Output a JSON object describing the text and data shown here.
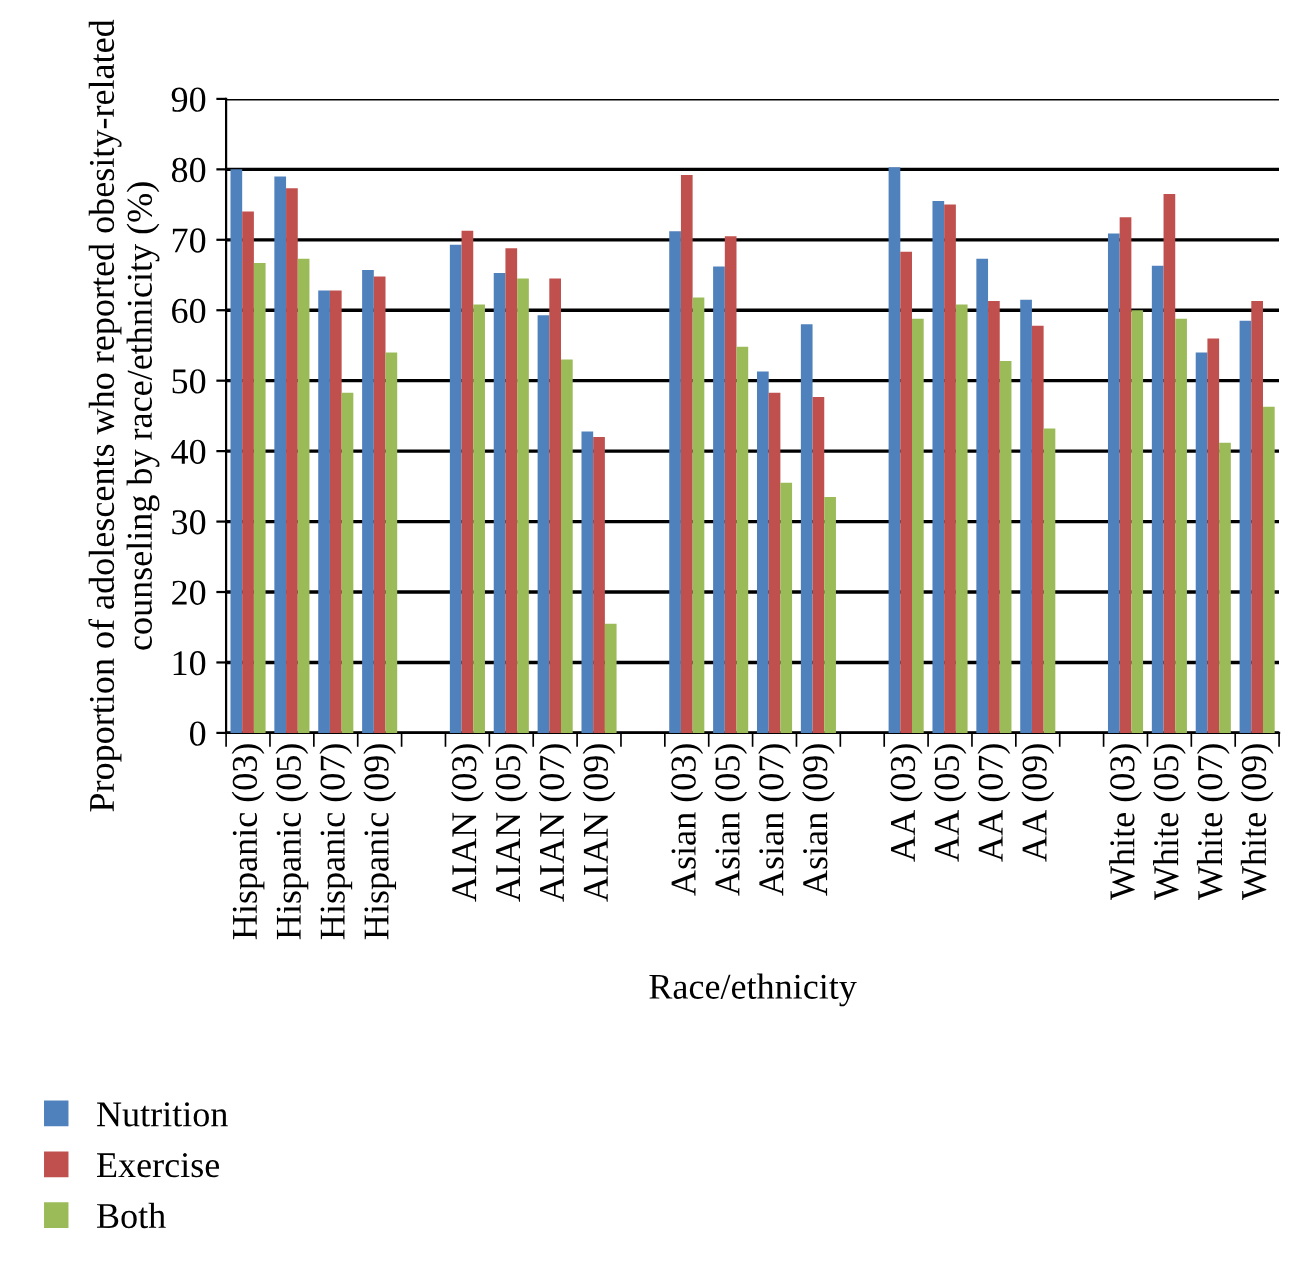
{
  "chart_data": {
    "type": "bar",
    "xlabel": "Race/ethnicity",
    "ylabel": "Proportion of adolescents who reported obesity-related counseling by race/ethnicity (%)",
    "categories": [
      "Hispanic (03)",
      "Hispanic (05)",
      "Hispanic (07)",
      "Hispanic (09)",
      null,
      "AIAN (03)",
      "AIAN (05)",
      "AIAN (07)",
      "AIAN (09)",
      null,
      "Asian (03)",
      "Asian (05)",
      "Asian (07)",
      "Asian (09)",
      null,
      "AA (03)",
      "AA (05)",
      "AA (07)",
      "AA (09)",
      null,
      "White (03)",
      "White (05)",
      "White (07)",
      "White (09)"
    ],
    "series": [
      {
        "name": "Nutrition",
        "color": "#4f81bd",
        "values": [
          80,
          79,
          62.8,
          65.7,
          null,
          69.3,
          65.3,
          59.3,
          42.8,
          null,
          71.2,
          66.2,
          51.3,
          58,
          null,
          80.3,
          75.5,
          67.3,
          61.5,
          null,
          70.9,
          66.3,
          54,
          58.5
        ]
      },
      {
        "name": "Exercise",
        "color": "#c0504d",
        "values": [
          74,
          77.3,
          62.8,
          64.8,
          null,
          71.3,
          68.8,
          64.5,
          42,
          null,
          79.2,
          70.5,
          48.3,
          47.7,
          null,
          68.3,
          75,
          61.3,
          57.8,
          null,
          73.2,
          76.5,
          56,
          61.3
        ]
      },
      {
        "name": "Both",
        "color": "#9bbb59",
        "values": [
          66.7,
          67.3,
          48.3,
          54,
          null,
          60.8,
          64.5,
          53,
          15.5,
          null,
          61.8,
          54.8,
          35.5,
          33.5,
          null,
          58.8,
          60.8,
          52.8,
          43.2,
          null,
          60,
          58.8,
          41.2,
          46.3
        ]
      }
    ],
    "ylim": [
      0,
      90
    ],
    "yticks": [
      0,
      10,
      20,
      30,
      40,
      50,
      60,
      70,
      80,
      90
    ],
    "grid": "y",
    "legend": "bottom left"
  }
}
